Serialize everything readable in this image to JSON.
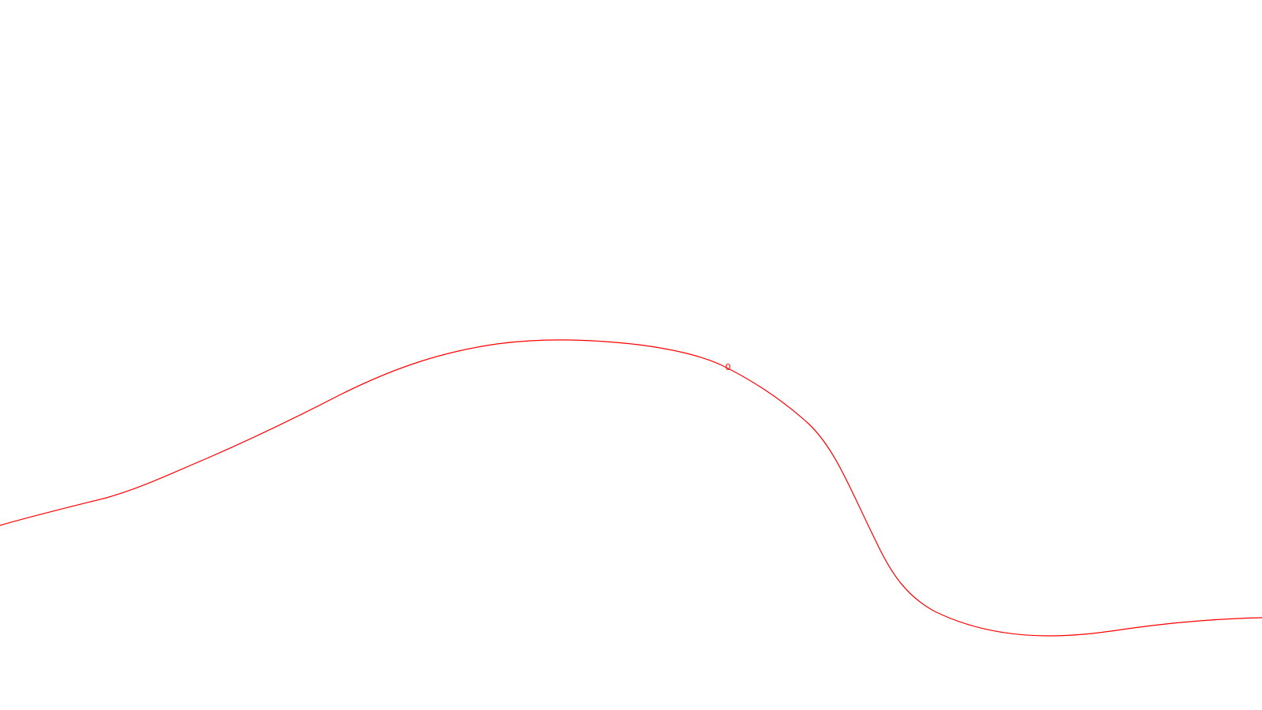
{
  "contour": {
    "label": "0",
    "color": "#ff0000"
  }
}
